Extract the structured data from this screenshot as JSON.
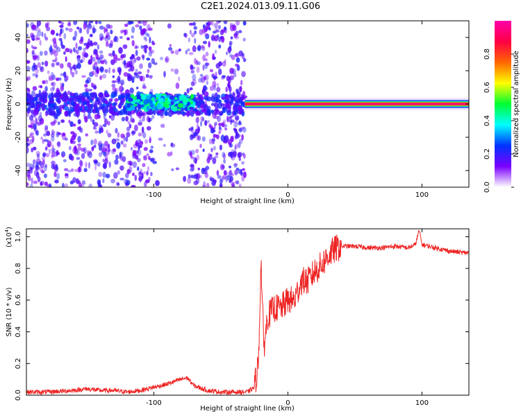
{
  "title": "C2E1.2024.013.09.11.G06",
  "chart_data": [
    {
      "type": "heatmap",
      "title": "C2E1.2024.013.09.11.G06",
      "xlabel": "Height of straight line (km)",
      "ylabel": "Frequency (Hz)",
      "xlim": [
        -195,
        135
      ],
      "ylim": [
        -50,
        50
      ],
      "x_ticks": [
        -100,
        0,
        100
      ],
      "x_tick_labels": [
        "-100",
        "0",
        "100"
      ],
      "y_ticks": [
        -40,
        -20,
        0,
        20,
        40
      ],
      "y_tick_labels": [
        "-40",
        "-20",
        "0",
        "20",
        "40"
      ],
      "colorbar": {
        "label": "Normalized spectral amplitude",
        "range": [
          0,
          1
        ],
        "ticks": [
          0,
          0.2,
          0.4,
          0.6,
          0.8
        ],
        "tick_labels": [
          "0.0",
          "0.2",
          "0.4",
          "0.6",
          "0.8"
        ],
        "colormap": [
          "#ffffff",
          "#7b00ff",
          "#0033ff",
          "#00ffff",
          "#00ff33",
          "#ffff00",
          "#ff6600",
          "#ff0044",
          "#ff00aa"
        ]
      },
      "features": [
        {
          "x_range": [
            -195,
            -32
          ],
          "frequency_range": [
            -50,
            50
          ],
          "amplitude": 0.1,
          "description": "scattered noise"
        },
        {
          "x_range": [
            -120,
            -70
          ],
          "frequency": 1,
          "amplitude": 0.4
        },
        {
          "x_range": [
            -32,
            135
          ],
          "frequency": 0,
          "amplitude": 0.95
        }
      ],
      "grid": false
    },
    {
      "type": "line",
      "xlabel": "Height of straight line (km)",
      "ylabel": "SNR (10 * v/v)",
      "y_scale_label": "(x10",
      "y_scale_exponent": "4",
      "y_multiplier": 10000,
      "xlim": [
        -195,
        135
      ],
      "ylim": [
        0,
        1.05
      ],
      "x_ticks": [
        -100,
        0,
        100
      ],
      "x_tick_labels": [
        "-100",
        "0",
        "100"
      ],
      "y_ticks": [
        0,
        0.2,
        0.4,
        0.6,
        0.8,
        1.0
      ],
      "y_tick_labels": [
        "0.0",
        "0.2",
        "0.4",
        "0.6",
        "0.8",
        "1.0"
      ],
      "color": "#ee2222",
      "x": [
        -195,
        -180,
        -160,
        -150,
        -140,
        -130,
        -120,
        -110,
        -100,
        -90,
        -80,
        -75,
        -70,
        -60,
        -50,
        -40,
        -30,
        -25,
        -22,
        -20,
        -18,
        -15,
        -10,
        -5,
        0,
        5,
        10,
        15,
        20,
        25,
        30,
        35,
        40,
        50,
        60,
        70,
        80,
        90,
        95,
        98,
        100,
        105,
        110,
        120,
        130,
        135
      ],
      "y": [
        0.02,
        0.02,
        0.03,
        0.04,
        0.03,
        0.03,
        0.02,
        0.03,
        0.05,
        0.07,
        0.1,
        0.11,
        0.06,
        0.03,
        0.02,
        0.02,
        0.02,
        0.05,
        0.2,
        0.85,
        0.3,
        0.5,
        0.55,
        0.55,
        0.6,
        0.6,
        0.72,
        0.72,
        0.78,
        0.82,
        0.88,
        0.92,
        0.94,
        0.94,
        0.93,
        0.93,
        0.94,
        0.93,
        0.95,
        1.04,
        0.95,
        0.94,
        0.93,
        0.91,
        0.9,
        0.9
      ]
    }
  ]
}
